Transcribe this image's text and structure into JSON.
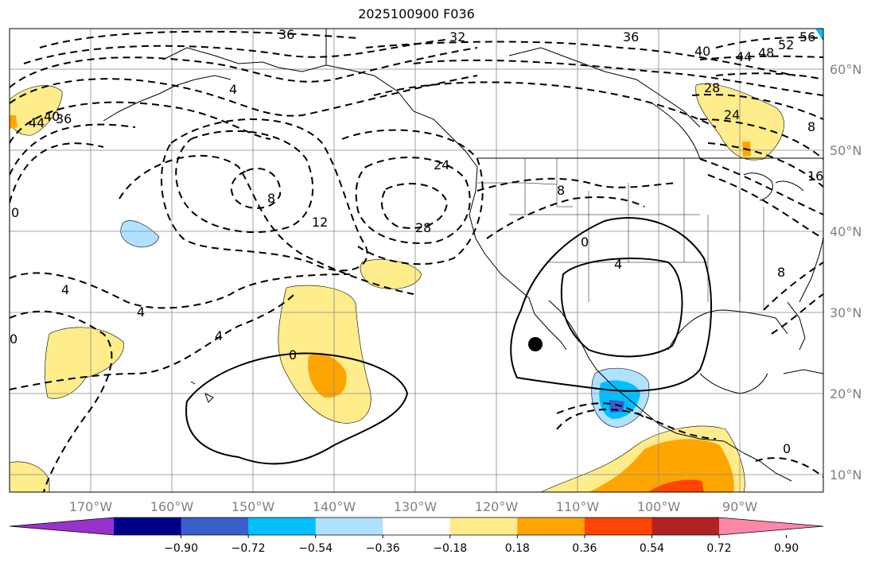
{
  "title": "2025100900 F036",
  "lat_labels": [
    "60°N",
    "50°N",
    "40°N",
    "30°N",
    "20°N",
    "10°N"
  ],
  "lon_labels": [
    "170°W",
    "160°W",
    "150°W",
    "140°W",
    "130°W",
    "120°W",
    "110°W",
    "100°W",
    "90°W"
  ],
  "contour_labels": [
    "36",
    "32",
    "36",
    "40",
    "44",
    "48",
    "52",
    "56",
    "28",
    "24",
    "16",
    "8",
    "8",
    "24",
    "28",
    "12",
    "0",
    "4",
    "0",
    "0",
    "4",
    "4",
    "0",
    "4",
    "8",
    "0",
    "40",
    "44",
    "36",
    "8",
    "4"
  ],
  "colorbar": {
    "ticks": [
      "−0.90",
      "−0.72",
      "−0.54",
      "−0.36",
      "−0.18",
      "0.18",
      "0.36",
      "0.54",
      "0.72",
      "0.90"
    ],
    "colors": [
      "#9932CC",
      "#00008B",
      "#3A5FCD",
      "#00BFFF",
      "#B0E2FF",
      "#FFFFFF",
      "#FFEC8B",
      "#FFA500",
      "#FF4500",
      "#B22222",
      "#FF88AA"
    ]
  },
  "marker": {
    "lon": -115,
    "lat": 26
  }
}
